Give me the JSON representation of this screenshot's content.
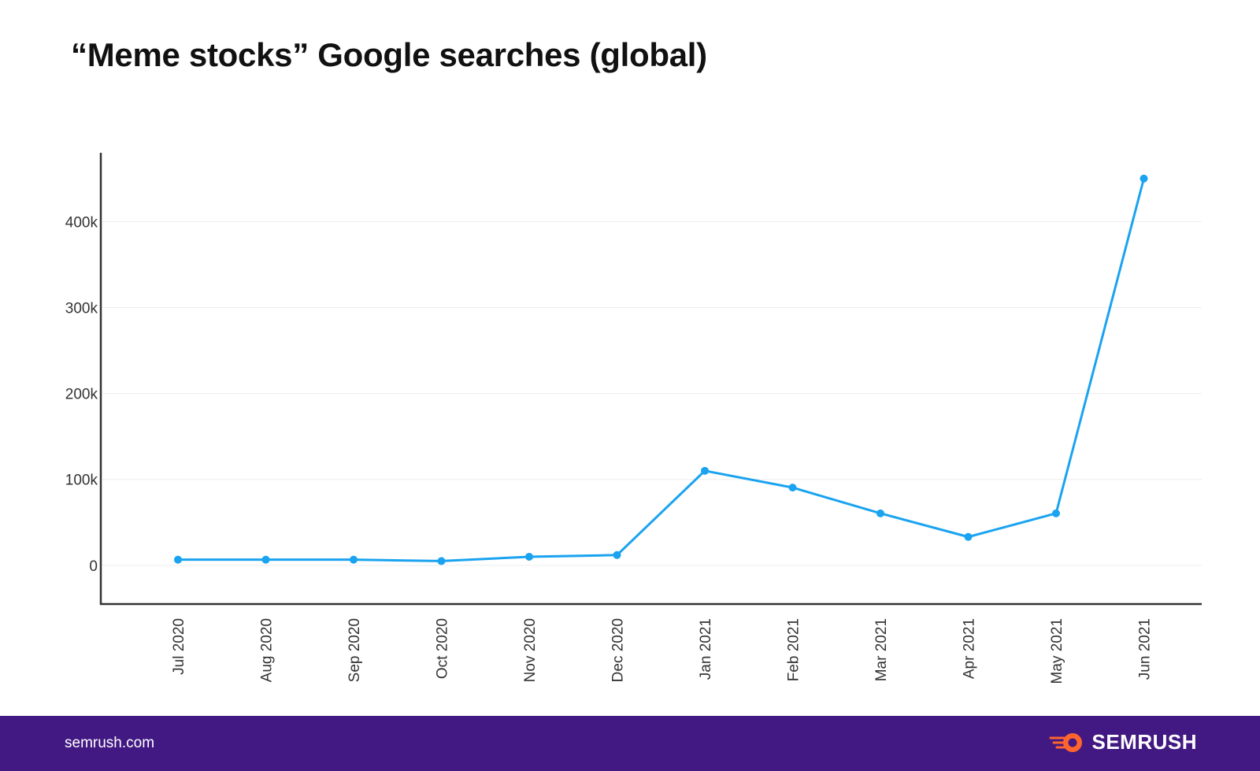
{
  "page": {
    "footer_url": "semrush.com",
    "brand": "SEMRUSH"
  },
  "colors": {
    "line": "#1aa3f0",
    "axis": "#333333",
    "grid": "#eeeeee",
    "footer_bg": "#421983",
    "logo_accent": "#ff642d"
  },
  "icons": [
    "semrush-logo-icon"
  ],
  "chart_data": {
    "type": "line",
    "title": "“Meme stocks” Google searches (global)",
    "xlabel": "",
    "ylabel": "",
    "categories": [
      "Jul 2020",
      "Aug 2020",
      "Sep 2020",
      "Oct 2020",
      "Nov 2020",
      "Dec 2020",
      "Jan 2021",
      "Feb 2021",
      "Mar 2021",
      "Apr 2021",
      "May 2021",
      "Jun 2021"
    ],
    "series": [
      {
        "values": [
          6600,
          6600,
          6600,
          5000,
          10000,
          12000,
          110000,
          90500,
          60500,
          33100,
          60500,
          450000
        ]
      }
    ],
    "yticks": [
      0,
      100000,
      200000,
      300000,
      400000
    ],
    "ytick_labels": [
      "0",
      "100k",
      "200k",
      "300k",
      "400k"
    ],
    "ylim": [
      -45000,
      480000
    ],
    "grid": true,
    "legend": "none"
  }
}
